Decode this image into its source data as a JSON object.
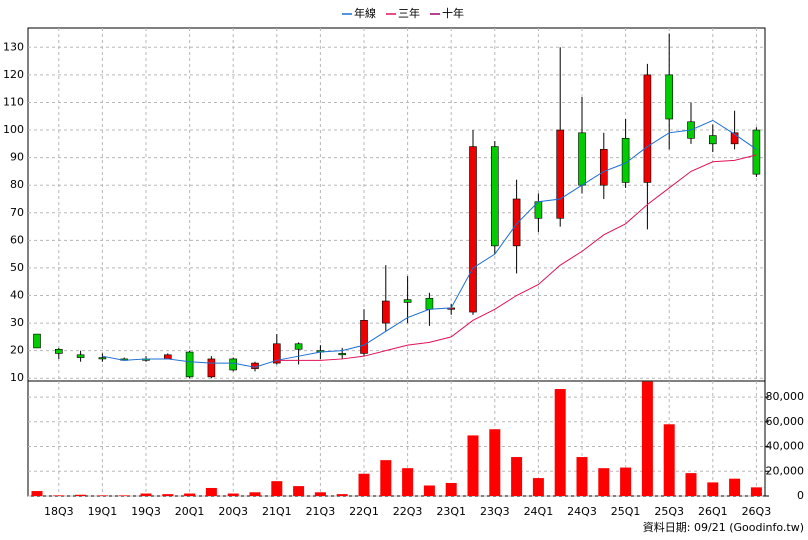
{
  "chart_data": [
    {
      "type": "candlestick",
      "open": [
        26,
        20.5,
        18.5,
        17.5,
        17,
        17,
        17,
        19.5,
        10.5,
        17,
        13.5,
        15.5,
        22.5,
        20,
        19,
        19,
        30,
        38.5,
        39,
        35,
        34,
        94,
        58,
        74,
        68,
        99,
        80,
        97,
        81,
        120,
        103,
        98,
        95,
        100
      ],
      "high": [
        26,
        21,
        20,
        19,
        17.5,
        18,
        19,
        20,
        18,
        17.5,
        16,
        26,
        23,
        22,
        21,
        35,
        51,
        47,
        41,
        37,
        100,
        96,
        82,
        77,
        130,
        112,
        99,
        104,
        124,
        135,
        110,
        102,
        107,
        101
      ],
      "low": [
        21,
        17,
        16,
        16,
        16.5,
        16,
        17,
        10,
        10,
        12.5,
        12.5,
        15,
        15,
        17,
        17,
        18,
        27,
        30,
        29,
        33,
        33,
        55,
        48,
        63,
        65,
        77,
        75,
        79,
        64,
        93,
        95,
        92,
        93,
        83
      ],
      "close": [
        21,
        19,
        17.5,
        17,
        16.5,
        16.5,
        18.5,
        10.5,
        17,
        13,
        15.5,
        22.5,
        20.5,
        19.5,
        18.5,
        31,
        38,
        37.5,
        35,
        35.5,
        94,
        58,
        75,
        68,
        100,
        80,
        93,
        81,
        120,
        104,
        97,
        95,
        99,
        84
      ],
      "up_color": "#ee0000",
      "down_color": "#00cc00",
      "series": [
        {
          "name": "年線",
          "color": "#1a6fd4",
          "values": [
            null,
            null,
            null,
            18,
            16.5,
            17,
            17,
            16,
            15.5,
            15.5,
            14,
            16.5,
            18,
            19.5,
            20,
            22,
            27,
            32,
            35,
            35.5,
            50,
            55,
            66,
            74,
            75,
            80,
            85,
            88,
            94,
            99,
            100,
            103.5,
            98.5,
            93
          ]
        },
        {
          "name": "三年",
          "color": "#e0105a",
          "values": [
            null,
            null,
            null,
            null,
            null,
            null,
            null,
            null,
            null,
            null,
            null,
            16.5,
            16.5,
            16.5,
            17,
            18,
            20,
            22,
            23,
            25,
            31,
            35,
            40,
            44,
            51,
            56,
            62,
            66,
            73,
            79,
            85,
            88.5,
            89,
            91
          ]
        },
        {
          "name": "十年",
          "color": "#a00070",
          "values": [
            null,
            null,
            null,
            null,
            null,
            null,
            null,
            null,
            null,
            null,
            null,
            null,
            null,
            null,
            null,
            null,
            null,
            null,
            null,
            null,
            null,
            null,
            null,
            null,
            null,
            null,
            null,
            null,
            null,
            null,
            null,
            null,
            null,
            null
          ]
        }
      ],
      "ylim": [
        9,
        137
      ],
      "yticks": [
        10,
        20,
        30,
        40,
        50,
        60,
        70,
        80,
        90,
        100,
        110,
        120,
        130
      ],
      "grid": true
    },
    {
      "type": "bar",
      "categories": [
        null,
        "18Q3",
        null,
        "19Q1",
        null,
        "19Q3",
        null,
        "20Q1",
        null,
        "20Q3",
        null,
        "21Q1",
        null,
        "21Q3",
        null,
        "22Q1",
        null,
        "22Q3",
        null,
        "23Q1",
        null,
        "23Q3",
        null,
        "24Q1",
        null,
        "24Q3",
        null,
        "25Q1",
        null,
        "25Q3",
        null,
        "26Q1",
        null,
        "26Q3"
      ],
      "values": [
        4000,
        500,
        1000,
        500,
        500,
        2000,
        1500,
        2000,
        6500,
        2000,
        3000,
        12000,
        8000,
        3000,
        1500,
        18000,
        29000,
        22500,
        8500,
        10500,
        49000,
        54000,
        31500,
        14500,
        86500,
        31500,
        22500,
        23000,
        92500,
        58000,
        18500,
        11000,
        14000,
        7000
      ],
      "color": "#ff0000",
      "ylim": [
        0,
        93000
      ],
      "yticks": [
        0,
        {
          "value": 20000,
          "label": "20,000"
        },
        {
          "value": 40000,
          "label": "40,000"
        },
        {
          "value": 60000,
          "label": "60,000"
        },
        {
          "value": 80000,
          "label": "80,000"
        }
      ],
      "grid": true,
      "note": "資料日期: 09/21 (Goodinfo.tw)"
    }
  ]
}
